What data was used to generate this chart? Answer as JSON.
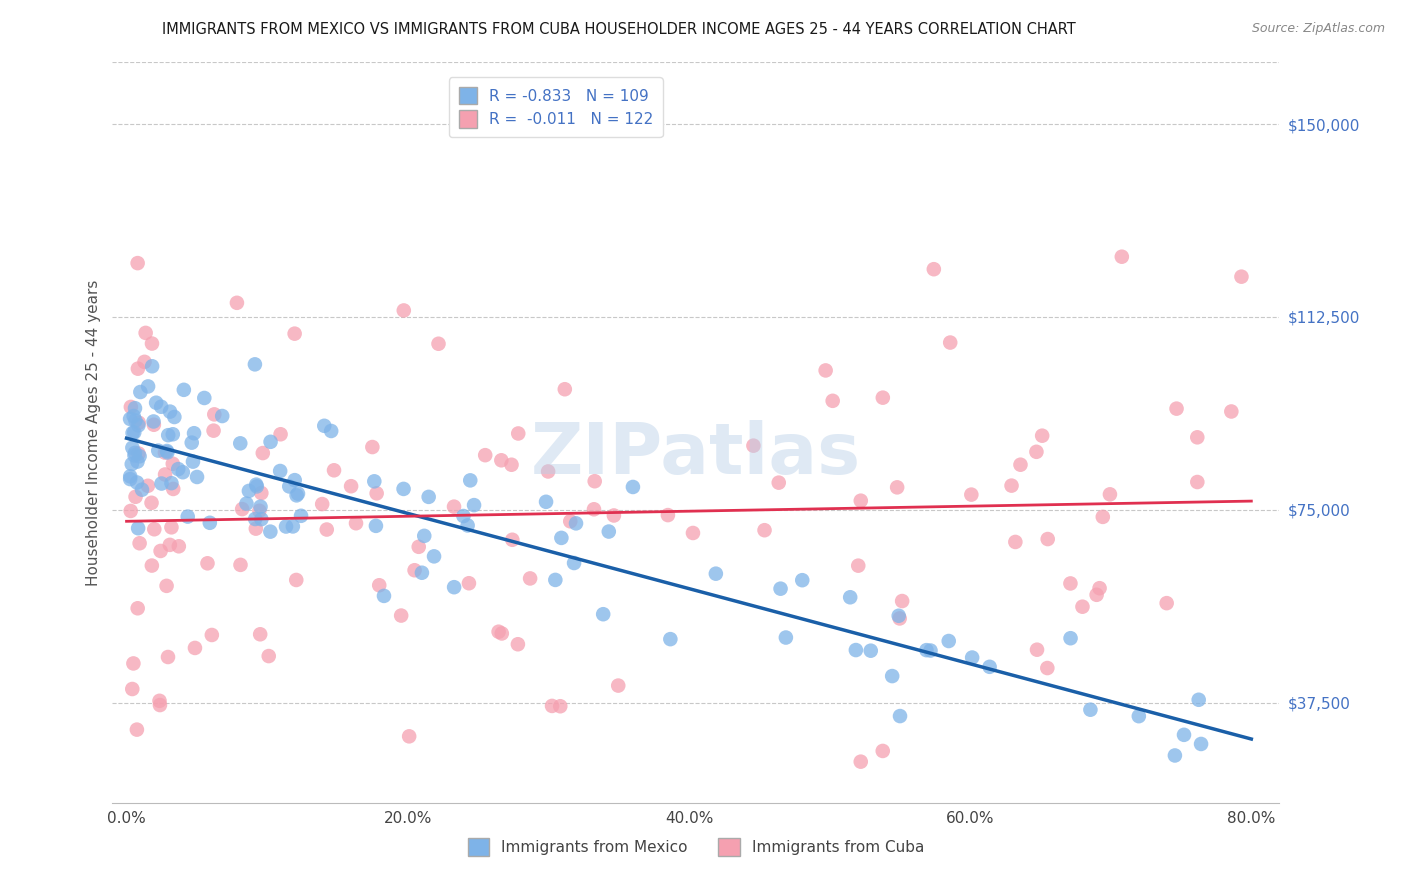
{
  "title": "IMMIGRANTS FROM MEXICO VS IMMIGRANTS FROM CUBA HOUSEHOLDER INCOME AGES 25 - 44 YEARS CORRELATION CHART",
  "source": "Source: ZipAtlas.com",
  "ylabel": "Householder Income Ages 25 - 44 years",
  "xlabel_ticks": [
    "0.0%",
    "20.0%",
    "40.0%",
    "60.0%",
    "80.0%"
  ],
  "xlabel_values": [
    0.0,
    20.0,
    40.0,
    60.0,
    80.0
  ],
  "ylabel_ticks": [
    "$37,500",
    "$75,000",
    "$112,500",
    "$150,000"
  ],
  "ylabel_values": [
    37500,
    75000,
    112500,
    150000
  ],
  "ylim": [
    18000,
    162000
  ],
  "xlim": [
    -1.0,
    82
  ],
  "mexico_R": -0.833,
  "mexico_N": 109,
  "cuba_R": -0.011,
  "cuba_N": 122,
  "mexico_color": "#7eb3e8",
  "cuba_color": "#f5a0b0",
  "mexico_line_color": "#1a5fa8",
  "cuba_line_color": "#e03050",
  "background_color": "#ffffff",
  "grid_color": "#c8c8c8",
  "watermark": "ZIPatlas",
  "legend_label_mexico": "Immigrants from Mexico",
  "legend_label_cuba": "Immigrants from Cuba",
  "legend_R_color": "#4472c4",
  "yaxis_color": "#4472c4"
}
